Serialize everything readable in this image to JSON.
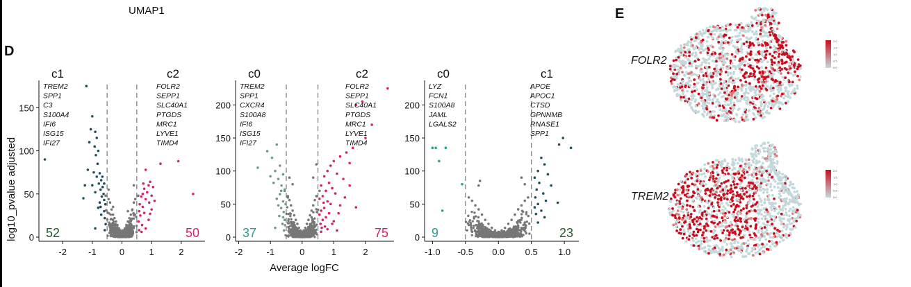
{
  "figure": {
    "top_label": "UMAP1",
    "panel_d": "D",
    "panel_e": "E",
    "ylabel": "log10_pvalue adjusted",
    "xlabel": "Average logFC"
  },
  "colors": {
    "gray": "#777777",
    "dark_teal": "#1f4e5e",
    "teal_light": "#6f9c88",
    "teal_count": "#2a9d8f",
    "magenta": "#d6226e",
    "dark_green": "#1e5d2b",
    "umap_base": "#c3d9dc",
    "umap_high": "#c80e1e",
    "umap_mid": "#dd7a7a"
  },
  "chart_data": [
    {
      "type": "scatter",
      "left_header": "c1",
      "right_header": "c2",
      "left_genes": [
        "TREM2",
        "SPP1",
        "C3",
        "S100A4",
        "IFI6",
        "ISG15",
        "IFI27"
      ],
      "right_genes": [
        "FOLR2",
        "SEPP1",
        "SLC40A1",
        "PTGDS",
        "MRC1",
        "LYVE1",
        "TIMD4"
      ],
      "left_count": "52",
      "right_count": "50",
      "left_count_color": "#1e5d2b",
      "right_count_color": "#d6226e",
      "left_color": "#1f4e5e",
      "right_color": "#d6226e",
      "xlim": [
        -2.8,
        2.8
      ],
      "ylim": [
        0,
        180
      ],
      "xticks": [
        -2,
        -1,
        0,
        1,
        2
      ],
      "yticks": [
        0,
        50,
        100,
        150
      ],
      "thresholds": [
        -0.5,
        0.5
      ],
      "highlight_left": [
        [
          -1.2,
          175
        ],
        [
          -2.6,
          90
        ],
        [
          -1.0,
          140
        ],
        [
          -1.05,
          125
        ],
        [
          -0.9,
          122
        ],
        [
          -0.85,
          115
        ],
        [
          -1.1,
          110
        ],
        [
          -0.92,
          105
        ],
        [
          -0.8,
          100
        ],
        [
          -0.88,
          95
        ],
        [
          -1.15,
          78
        ],
        [
          -0.95,
          75
        ],
        [
          -0.75,
          74
        ],
        [
          -0.85,
          70
        ],
        [
          -0.7,
          66
        ],
        [
          -0.78,
          62
        ],
        [
          -1.0,
          60
        ],
        [
          -0.65,
          58
        ],
        [
          -0.72,
          55
        ],
        [
          -0.9,
          52
        ],
        [
          -0.62,
          50
        ],
        [
          -0.68,
          47
        ],
        [
          -1.3,
          45
        ],
        [
          -0.6,
          43
        ],
        [
          -0.75,
          40
        ],
        [
          -0.56,
          38
        ],
        [
          -0.8,
          34
        ],
        [
          -0.6,
          30
        ],
        [
          -0.7,
          26
        ],
        [
          -0.58,
          22
        ],
        [
          -0.9,
          10
        ],
        [
          -0.55,
          15
        ],
        [
          -1.25,
          60
        ],
        [
          -0.82,
          85
        ],
        [
          -0.66,
          70
        ],
        [
          -0.72,
          35
        ],
        [
          -0.6,
          62
        ],
        [
          -0.58,
          8
        ]
      ],
      "highlight_right": [
        [
          1.9,
          88
        ],
        [
          1.3,
          85
        ],
        [
          0.8,
          78
        ],
        [
          0.95,
          64
        ],
        [
          0.9,
          60
        ],
        [
          1.05,
          58
        ],
        [
          0.75,
          56
        ],
        [
          0.85,
          52
        ],
        [
          0.7,
          50
        ],
        [
          2.4,
          50
        ],
        [
          1.0,
          48
        ],
        [
          0.65,
          47
        ],
        [
          0.8,
          44
        ],
        [
          0.92,
          40
        ],
        [
          0.6,
          38
        ],
        [
          0.7,
          35
        ],
        [
          1.0,
          32
        ],
        [
          0.58,
          30
        ],
        [
          0.75,
          28
        ],
        [
          0.62,
          25
        ],
        [
          0.9,
          20
        ],
        [
          0.56,
          18
        ],
        [
          0.68,
          14
        ],
        [
          0.8,
          10
        ],
        [
          0.58,
          8
        ],
        [
          1.1,
          42
        ],
        [
          0.72,
          62
        ],
        [
          0.95,
          27
        ],
        [
          0.66,
          6
        ]
      ],
      "other_extra": [
        [
          -0.45,
          55
        ],
        [
          0.4,
          60
        ],
        [
          -0.3,
          35
        ],
        [
          0.2,
          30
        ]
      ],
      "core": [
        [
          -0.55,
          48
        ],
        [
          -0.45,
          44
        ],
        [
          -0.4,
          40
        ],
        [
          -0.35,
          32
        ],
        [
          -0.3,
          26
        ],
        [
          -0.25,
          22
        ],
        [
          -0.2,
          18
        ],
        [
          -0.15,
          14
        ],
        [
          -0.1,
          10
        ],
        [
          -0.05,
          8
        ],
        [
          0.0,
          6
        ],
        [
          0.05,
          8
        ],
        [
          0.1,
          10
        ],
        [
          0.15,
          14
        ],
        [
          0.2,
          18
        ],
        [
          0.25,
          22
        ],
        [
          0.3,
          26
        ],
        [
          0.35,
          32
        ],
        [
          0.4,
          40
        ],
        [
          0.45,
          44
        ],
        [
          0.55,
          48
        ]
      ]
    },
    {
      "type": "scatter",
      "left_header": "c0",
      "right_header": "c2",
      "left_genes": [
        "TREM2",
        "SPP1",
        "CXCR4",
        "S100A8",
        "IFI6",
        "ISG15",
        "IFI27"
      ],
      "right_genes": [
        "FOLR2",
        "SEPP1",
        "SLC40A1",
        "PTGDS",
        "MRC1",
        "LYVE1",
        "TIMD4"
      ],
      "left_count": "37",
      "right_count": "75",
      "left_count_color": "#2a9d8f",
      "right_count_color": "#d6226e",
      "left_color": "#6f9c88",
      "right_color": "#d6226e",
      "xlim": [
        -2.1,
        2.9
      ],
      "ylim": [
        0,
        235
      ],
      "xticks": [
        -2,
        -1,
        0,
        1,
        2
      ],
      "yticks": [
        0,
        50,
        100,
        150,
        200
      ],
      "thresholds": [
        -0.5,
        0.5
      ],
      "highlight_left": [
        [
          -0.8,
          140
        ],
        [
          -1.1,
          130
        ],
        [
          -0.95,
          120
        ],
        [
          -0.7,
          108
        ],
        [
          -0.85,
          100
        ],
        [
          -0.6,
          95
        ],
        [
          -0.75,
          88
        ],
        [
          -0.9,
          82
        ],
        [
          -0.65,
          78
        ],
        [
          -0.55,
          72
        ],
        [
          -0.7,
          65
        ],
        [
          -0.8,
          58
        ],
        [
          -0.6,
          54
        ],
        [
          -0.52,
          50
        ],
        [
          -0.66,
          44
        ],
        [
          -0.58,
          38
        ],
        [
          -0.72,
          32
        ],
        [
          -0.55,
          26
        ],
        [
          -0.62,
          20
        ],
        [
          -0.85,
          14
        ],
        [
          -0.57,
          10
        ],
        [
          -1.0,
          92
        ],
        [
          -0.66,
          70
        ],
        [
          -0.75,
          48
        ],
        [
          -0.6,
          30
        ],
        [
          -1.4,
          105
        ],
        [
          -0.54,
          18
        ]
      ],
      "highlight_right": [
        [
          2.7,
          225
        ],
        [
          1.9,
          205
        ],
        [
          1.7,
          200
        ],
        [
          2.2,
          170
        ],
        [
          2.0,
          150
        ],
        [
          1.6,
          135
        ],
        [
          1.4,
          128
        ],
        [
          1.2,
          122
        ],
        [
          1.0,
          115
        ],
        [
          1.5,
          112
        ],
        [
          0.9,
          108
        ],
        [
          0.8,
          100
        ],
        [
          1.1,
          96
        ],
        [
          0.7,
          92
        ],
        [
          1.3,
          88
        ],
        [
          0.85,
          82
        ],
        [
          0.6,
          78
        ],
        [
          0.95,
          74
        ],
        [
          0.75,
          70
        ],
        [
          1.05,
          66
        ],
        [
          0.65,
          62
        ],
        [
          0.55,
          58
        ],
        [
          0.8,
          54
        ],
        [
          0.9,
          50
        ],
        [
          1.2,
          48
        ],
        [
          1.7,
          45
        ],
        [
          0.7,
          44
        ],
        [
          0.6,
          40
        ],
        [
          0.85,
          36
        ],
        [
          0.55,
          34
        ],
        [
          0.75,
          30
        ],
        [
          0.65,
          26
        ],
        [
          1.0,
          24
        ],
        [
          0.58,
          20
        ],
        [
          0.72,
          16
        ],
        [
          0.8,
          12
        ],
        [
          0.6,
          8
        ],
        [
          1.15,
          36
        ],
        [
          1.35,
          60
        ],
        [
          1.5,
          78
        ],
        [
          0.95,
          20
        ],
        [
          1.1,
          10
        ],
        [
          0.68,
          52
        ],
        [
          0.62,
          14
        ]
      ],
      "other_extra": [
        [
          -0.4,
          90
        ],
        [
          -0.3,
          80
        ],
        [
          0.35,
          90
        ],
        [
          0.45,
          110
        ],
        [
          -0.45,
          60
        ]
      ],
      "core": [
        [
          -0.55,
          70
        ],
        [
          -0.45,
          62
        ],
        [
          -0.4,
          56
        ],
        [
          -0.35,
          48
        ],
        [
          -0.3,
          40
        ],
        [
          -0.25,
          33
        ],
        [
          -0.2,
          26
        ],
        [
          -0.15,
          20
        ],
        [
          -0.1,
          14
        ],
        [
          -0.05,
          10
        ],
        [
          0.0,
          8
        ],
        [
          0.05,
          10
        ],
        [
          0.1,
          14
        ],
        [
          0.15,
          20
        ],
        [
          0.2,
          26
        ],
        [
          0.25,
          33
        ],
        [
          0.3,
          40
        ],
        [
          0.35,
          48
        ],
        [
          0.4,
          56
        ],
        [
          0.45,
          62
        ],
        [
          0.55,
          70
        ]
      ]
    },
    {
      "type": "scatter",
      "left_header": "c0",
      "right_header": "c1",
      "left_genes": [
        "LYZ",
        "FCN1",
        "S100A8",
        "JAML",
        "LGALS2"
      ],
      "right_genes": [
        "APOE",
        "APOC1",
        "CTSD",
        "GPNNMB",
        "RNASE1",
        "SPP1"
      ],
      "left_count": "9",
      "right_count": "23",
      "left_count_color": "#2a9d8f",
      "right_count_color": "#1e5d2b",
      "left_color": "#2a9d8f",
      "right_color": "#1f4e5e",
      "xlim": [
        -1.12,
        1.22
      ],
      "ylim": [
        0,
        235
      ],
      "xticks": [
        -1.0,
        -0.5,
        0.0,
        0.5,
        1.0
      ],
      "yticks": [
        0,
        50,
        100,
        150,
        200
      ],
      "thresholds": [
        -0.5,
        0.5
      ],
      "highlight_left": [
        [
          -1.0,
          135
        ],
        [
          -0.95,
          135
        ],
        [
          -0.8,
          135
        ],
        [
          -0.9,
          115
        ],
        [
          -0.85,
          40
        ],
        [
          -0.55,
          80
        ]
      ],
      "highlight_right": [
        [
          0.98,
          150
        ],
        [
          0.92,
          140
        ],
        [
          1.1,
          135
        ],
        [
          0.65,
          120
        ],
        [
          0.7,
          110
        ],
        [
          0.6,
          100
        ],
        [
          0.75,
          95
        ],
        [
          0.55,
          90
        ],
        [
          0.62,
          82
        ],
        [
          0.8,
          78
        ],
        [
          0.58,
          72
        ],
        [
          0.68,
          66
        ],
        [
          0.56,
          60
        ],
        [
          0.72,
          55
        ],
        [
          0.6,
          50
        ],
        [
          0.9,
          52
        ],
        [
          0.55,
          45
        ],
        [
          0.65,
          40
        ],
        [
          0.57,
          35
        ],
        [
          0.7,
          30
        ],
        [
          0.6,
          22
        ]
      ],
      "other_extra": [
        [
          -0.28,
          85
        ],
        [
          0.35,
          90
        ],
        [
          0.4,
          80
        ],
        [
          -0.3,
          78
        ]
      ],
      "core": [
        [
          -0.45,
          60
        ],
        [
          -0.4,
          55
        ],
        [
          -0.35,
          48
        ],
        [
          -0.3,
          42
        ],
        [
          -0.25,
          34
        ],
        [
          -0.2,
          26
        ],
        [
          -0.15,
          20
        ],
        [
          -0.1,
          14
        ],
        [
          -0.05,
          10
        ],
        [
          0.0,
          8
        ],
        [
          0.05,
          10
        ],
        [
          0.1,
          14
        ],
        [
          0.15,
          20
        ],
        [
          0.2,
          26
        ],
        [
          0.25,
          34
        ],
        [
          0.3,
          42
        ],
        [
          0.35,
          48
        ],
        [
          0.4,
          55
        ],
        [
          0.45,
          60
        ]
      ]
    }
  ],
  "umap": [
    {
      "gene": "FOLR2",
      "legend_ticks": [
        "2.0",
        "1.5",
        "1.0",
        "0.5",
        "0.0"
      ]
    },
    {
      "gene": "TREM2",
      "legend_ticks": [
        "2.0",
        "1.5",
        "1.0",
        "0.5",
        "0.0"
      ]
    }
  ]
}
